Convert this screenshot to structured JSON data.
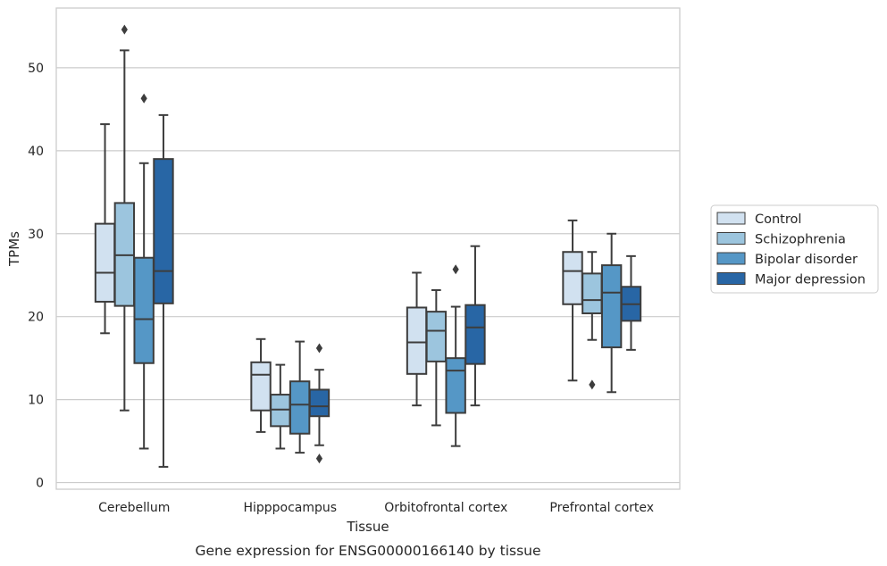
{
  "chart_data": {
    "type": "boxplot",
    "caption": "Gene expression for ENSG00000166140 by tissue",
    "xlabel": "Tissue",
    "ylabel": "TPMs",
    "ylim": [
      -0.8,
      57.2
    ],
    "yticks": [
      0,
      10,
      20,
      30,
      40,
      50
    ],
    "grid": "horizontal",
    "legend_position": "right",
    "categories": [
      "Cerebellum",
      "Hipppocampus",
      "Orbitofrontal cortex",
      "Prefrontal cortex"
    ],
    "series": [
      {
        "name": "Control",
        "color": "#d1e1f0",
        "boxes": [
          {
            "whislo": 18.0,
            "q1": 21.8,
            "med": 25.3,
            "q3": 31.2,
            "whishi": 43.2,
            "fliers": []
          },
          {
            "whislo": 6.1,
            "q1": 8.7,
            "med": 13.0,
            "q3": 14.5,
            "whishi": 17.3,
            "fliers": []
          },
          {
            "whislo": 9.3,
            "q1": 13.1,
            "med": 16.9,
            "q3": 21.1,
            "whishi": 25.3,
            "fliers": []
          },
          {
            "whislo": 12.3,
            "q1": 21.5,
            "med": 25.5,
            "q3": 27.8,
            "whishi": 31.6,
            "fliers": []
          }
        ]
      },
      {
        "name": "Schizophrenia",
        "color": "#9cc5de",
        "boxes": [
          {
            "whislo": 8.7,
            "q1": 21.3,
            "med": 27.4,
            "q3": 33.7,
            "whishi": 52.1,
            "fliers": [
              54.6
            ]
          },
          {
            "whislo": 4.1,
            "q1": 6.8,
            "med": 8.8,
            "q3": 10.6,
            "whishi": 14.2,
            "fliers": []
          },
          {
            "whislo": 6.9,
            "q1": 14.6,
            "med": 18.3,
            "q3": 20.6,
            "whishi": 23.2,
            "fliers": []
          },
          {
            "whislo": 17.2,
            "q1": 20.4,
            "med": 22.0,
            "q3": 25.2,
            "whishi": 27.8,
            "fliers": [
              11.8
            ]
          }
        ]
      },
      {
        "name": "Bipolar disorder",
        "color": "#5597c6",
        "boxes": [
          {
            "whislo": 4.1,
            "q1": 14.4,
            "med": 19.7,
            "q3": 27.1,
            "whishi": 38.5,
            "fliers": [
              46.3
            ]
          },
          {
            "whislo": 3.6,
            "q1": 5.9,
            "med": 9.4,
            "q3": 12.2,
            "whishi": 17.0,
            "fliers": []
          },
          {
            "whislo": 4.4,
            "q1": 8.4,
            "med": 13.5,
            "q3": 15.0,
            "whishi": 21.2,
            "fliers": [
              25.7
            ]
          },
          {
            "whislo": 10.9,
            "q1": 16.3,
            "med": 22.9,
            "q3": 26.2,
            "whishi": 30.0,
            "fliers": []
          }
        ]
      },
      {
        "name": "Major depression",
        "color": "#2866a5",
        "boxes": [
          {
            "whislo": 1.9,
            "q1": 21.6,
            "med": 25.5,
            "q3": 39.0,
            "whishi": 44.3,
            "fliers": []
          },
          {
            "whislo": 4.5,
            "q1": 8.0,
            "med": 9.2,
            "q3": 11.2,
            "whishi": 13.6,
            "fliers": [
              16.2,
              2.9
            ]
          },
          {
            "whislo": 9.3,
            "q1": 14.3,
            "med": 18.7,
            "q3": 21.4,
            "whishi": 28.5,
            "fliers": []
          },
          {
            "whislo": 16.0,
            "q1": 19.5,
            "med": 21.5,
            "q3": 23.6,
            "whishi": 27.3,
            "fliers": []
          }
        ]
      }
    ]
  }
}
